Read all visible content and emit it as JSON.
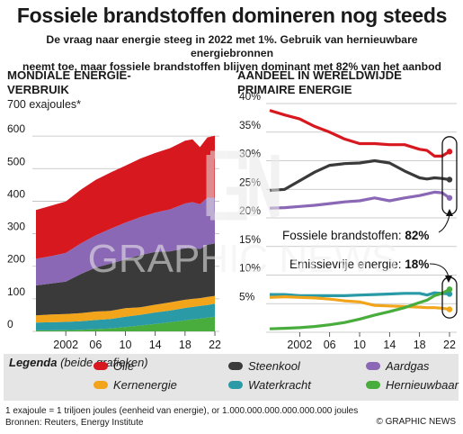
{
  "title": "Fossiele brandstoffen domineren nog steeds",
  "subtitle_line1": "De vraag naar energie steeg in 2022 met 1%. Gebruik van hernieuwbare energiebronnen",
  "subtitle_line2": "neemt toe, maar fossiele brandstoffen blijven dominant met 82% van het aanbod",
  "left_panel": {
    "title_line1": "MONDIALE ENERGIE-",
    "title_line2": "VERBRUIK",
    "unit_label": "700 exajoules*"
  },
  "right_panel": {
    "title_line1": "AANDEEL IN WERELDWIJDE",
    "title_line2": "PRIMAIRE ENERGIE"
  },
  "annotations": {
    "fossil_text": "Fossiele brandstoffen: ",
    "fossil_value": "82%",
    "emission_text": "Emissievrije energie: ",
    "emission_value": "18%"
  },
  "legend": {
    "title_bold": "Legenda",
    "title_rest": " (beide grafieken)",
    "items": [
      {
        "label": "Olie",
        "color": "#d7181f"
      },
      {
        "label": "Steenkool",
        "color": "#3a3a3a"
      },
      {
        "label": "Aardgas",
        "color": "#8a68b5"
      },
      {
        "label": "Kernenergie",
        "color": "#f2a51a"
      },
      {
        "label": "Waterkracht",
        "color": "#2a9aa6"
      },
      {
        "label": "Hernieuwbaar",
        "color": "#49ad3e"
      }
    ]
  },
  "footnote": "1 exajoule = 1 triljoen joules (eenheid van energie), or 1.000.000.000.000.000.000 joules",
  "sources": "Bronnen: Reuters, Energy Institute",
  "credit": "© GRAPHIC NEWS",
  "watermark": "GRAPHIC NEWS",
  "chart_data": [
    {
      "type": "area",
      "title": "MONDIALE ENERGIE-VERBRUIK",
      "ylabel": "exajoules",
      "ylim": [
        0,
        700
      ],
      "yticks": [
        0,
        100,
        200,
        300,
        400,
        500,
        600,
        700
      ],
      "x_tick_labels": [
        "2002",
        "06",
        "10",
        "14",
        "18",
        "22"
      ],
      "stacked": true,
      "x": [
        1998,
        2000,
        2002,
        2004,
        2006,
        2008,
        2010,
        2012,
        2014,
        2016,
        2018,
        2019,
        2020,
        2021,
        2022
      ],
      "series": [
        {
          "name": "Hernieuwbaar",
          "values": [
            3,
            3,
            4,
            5,
            7,
            9,
            13,
            18,
            23,
            28,
            34,
            37,
            39,
            42,
            45
          ]
        },
        {
          "name": "Waterkracht",
          "values": [
            24,
            25,
            25,
            26,
            28,
            29,
            32,
            33,
            35,
            36,
            38,
            38,
            39,
            39,
            40
          ]
        },
        {
          "name": "Kernenergie",
          "values": [
            22,
            24,
            24,
            25,
            26,
            25,
            26,
            23,
            24,
            25,
            25,
            25,
            24,
            25,
            24
          ]
        },
        {
          "name": "Steenkool",
          "values": [
            92,
            95,
            100,
            120,
            135,
            145,
            150,
            160,
            162,
            157,
            158,
            157,
            151,
            160,
            161
          ]
        },
        {
          "name": "Aardgas",
          "values": [
            82,
            84,
            88,
            94,
            99,
            107,
            113,
            117,
            121,
            129,
            138,
            140,
            138,
            145,
            141
          ]
        },
        {
          "name": "Olie",
          "values": [
            150,
            155,
            158,
            165,
            170,
            173,
            175,
            180,
            183,
            188,
            193,
            193,
            175,
            185,
            190
          ]
        }
      ]
    },
    {
      "type": "line",
      "title": "AANDEEL IN WERELDWIJDE PRIMAIRE ENERGIE",
      "ylabel": "%",
      "ylim": [
        0,
        40
      ],
      "yticks": [
        0,
        5,
        10,
        15,
        20,
        25,
        30,
        35,
        40
      ],
      "x_tick_labels": [
        "2002",
        "06",
        "10",
        "14",
        "18",
        "22"
      ],
      "x": [
        1998,
        2000,
        2002,
        2004,
        2006,
        2008,
        2010,
        2012,
        2014,
        2016,
        2018,
        2019,
        2020,
        2021,
        2022
      ],
      "series": [
        {
          "name": "Olie",
          "values": [
            38.8,
            38.0,
            37.3,
            36.0,
            35.0,
            33.8,
            33.0,
            33.0,
            32.8,
            32.8,
            32.0,
            31.8,
            30.8,
            30.8,
            31.6
          ]
        },
        {
          "name": "Steenkool",
          "values": [
            24.8,
            25.0,
            26.5,
            28.0,
            29.2,
            29.5,
            29.6,
            30.0,
            29.6,
            28.2,
            27.0,
            26.8,
            27.0,
            26.9,
            26.7
          ]
        },
        {
          "name": "Aardgas",
          "values": [
            21.7,
            21.8,
            22.0,
            22.2,
            22.5,
            22.8,
            23.0,
            23.5,
            23.0,
            23.5,
            23.9,
            24.2,
            24.5,
            24.4,
            23.5
          ]
        },
        {
          "name": "Waterkracht",
          "values": [
            6.6,
            6.6,
            6.4,
            6.4,
            6.4,
            6.4,
            6.5,
            6.6,
            6.7,
            6.8,
            6.8,
            6.5,
            6.9,
            6.8,
            6.7
          ]
        },
        {
          "name": "Kernenergie",
          "values": [
            6.1,
            6.2,
            6.1,
            6.0,
            5.8,
            5.5,
            5.3,
            4.7,
            4.6,
            4.5,
            4.4,
            4.3,
            4.3,
            4.2,
            4.0
          ]
        },
        {
          "name": "Hernieuwbaar",
          "values": [
            0.6,
            0.7,
            0.8,
            1.0,
            1.3,
            1.7,
            2.3,
            3.0,
            3.6,
            4.3,
            5.2,
            5.6,
            6.4,
            6.8,
            7.5
          ]
        }
      ]
    }
  ]
}
